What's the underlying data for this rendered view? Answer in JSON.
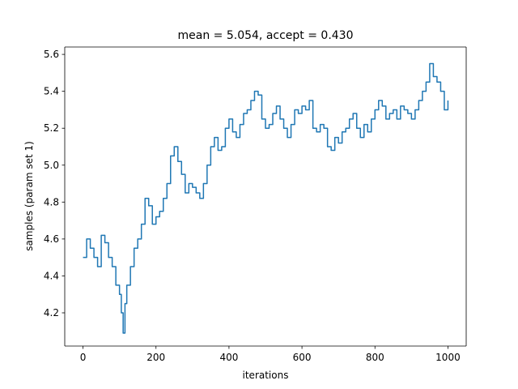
{
  "chart_data": {
    "type": "line",
    "title": "mean = 5.054, accept = 0.430",
    "xlabel": "iterations",
    "ylabel": "samples (param set 1)",
    "xlim": [
      -50,
      1050
    ],
    "ylim": [
      4.02,
      5.64
    ],
    "xticks": [
      0,
      200,
      400,
      600,
      800,
      1000
    ],
    "xtick_labels": [
      "0",
      "200",
      "400",
      "600",
      "800",
      "1000"
    ],
    "yticks": [
      4.2,
      4.4,
      4.6,
      4.8,
      5.0,
      5.2,
      5.4,
      5.6
    ],
    "ytick_labels": [
      "4.2",
      "4.4",
      "4.6",
      "4.8",
      "5.0",
      "5.2",
      "5.4",
      "5.6"
    ],
    "grid": false,
    "series": [
      {
        "color": "#1f77b4",
        "x": [
          0,
          10,
          20,
          30,
          40,
          50,
          60,
          70,
          80,
          90,
          100,
          105,
          110,
          115,
          120,
          130,
          140,
          150,
          160,
          170,
          180,
          190,
          200,
          210,
          220,
          230,
          240,
          250,
          260,
          270,
          280,
          290,
          300,
          310,
          320,
          330,
          340,
          350,
          360,
          370,
          380,
          390,
          400,
          410,
          420,
          430,
          440,
          450,
          460,
          470,
          480,
          490,
          500,
          510,
          520,
          530,
          540,
          550,
          560,
          570,
          580,
          590,
          600,
          610,
          620,
          630,
          640,
          650,
          660,
          670,
          680,
          690,
          700,
          710,
          720,
          730,
          740,
          750,
          760,
          770,
          780,
          790,
          800,
          810,
          820,
          830,
          840,
          850,
          860,
          870,
          880,
          890,
          900,
          910,
          920,
          930,
          940,
          950,
          960,
          970,
          980,
          990,
          1000
        ],
        "y": [
          4.5,
          4.6,
          4.55,
          4.5,
          4.45,
          4.62,
          4.58,
          4.5,
          4.45,
          4.35,
          4.3,
          4.2,
          4.09,
          4.25,
          4.35,
          4.45,
          4.55,
          4.6,
          4.68,
          4.82,
          4.78,
          4.68,
          4.72,
          4.75,
          4.82,
          4.9,
          5.05,
          5.1,
          5.02,
          4.95,
          4.85,
          4.9,
          4.88,
          4.85,
          4.82,
          4.9,
          5.0,
          5.1,
          5.15,
          5.08,
          5.1,
          5.2,
          5.25,
          5.18,
          5.15,
          5.22,
          5.28,
          5.3,
          5.35,
          5.4,
          5.38,
          5.25,
          5.2,
          5.22,
          5.28,
          5.32,
          5.25,
          5.2,
          5.15,
          5.22,
          5.3,
          5.28,
          5.32,
          5.3,
          5.35,
          5.2,
          5.18,
          5.22,
          5.2,
          5.1,
          5.08,
          5.15,
          5.12,
          5.18,
          5.2,
          5.25,
          5.28,
          5.2,
          5.15,
          5.22,
          5.18,
          5.25,
          5.3,
          5.35,
          5.32,
          5.25,
          5.28,
          5.3,
          5.25,
          5.32,
          5.3,
          5.28,
          5.25,
          5.3,
          5.35,
          5.4,
          5.45,
          5.55,
          5.48,
          5.45,
          5.4,
          5.3,
          5.35
        ]
      }
    ]
  }
}
